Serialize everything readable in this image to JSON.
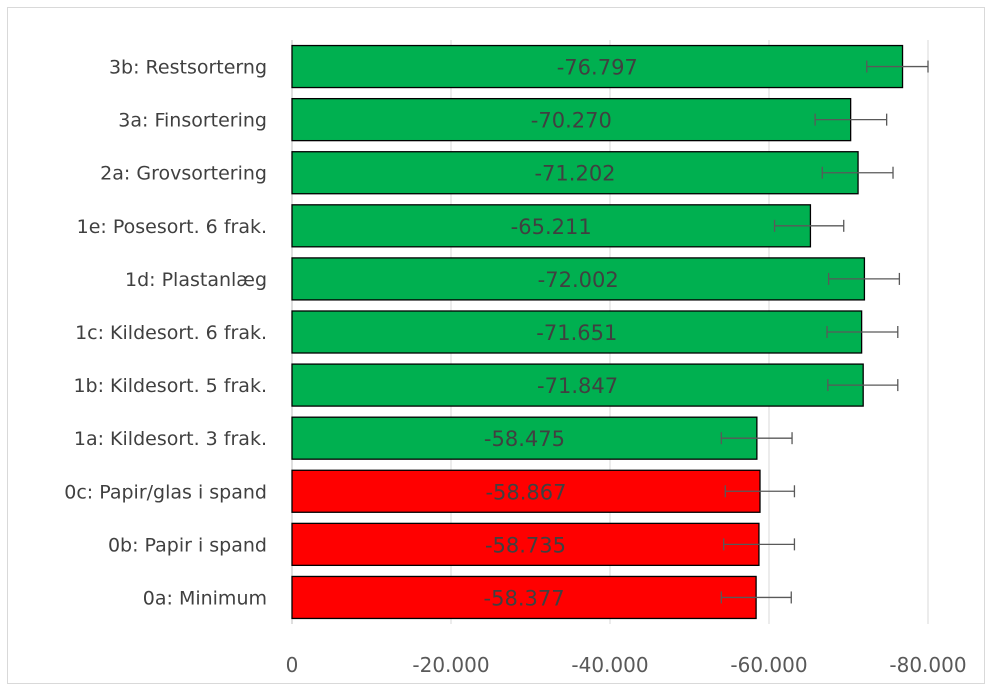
{
  "chart_data": {
    "type": "bar",
    "orientation": "horizontal",
    "categories": [
      "3b: Restsorterng",
      "3a: Finsortering",
      "2a: Grovsortering",
      "1e: Posesort. 6 frak.",
      "1d: Plastanlæg",
      "1c: Kildesort. 6 frak.",
      "1b: Kildesort. 5 frak.",
      "1a: Kildesort. 3 frak.",
      "0c: Papir/glas i spand",
      "0b: Papir i spand",
      "0a: Minimum"
    ],
    "values": [
      -76797,
      -70270,
      -71202,
      -65211,
      -72002,
      -71651,
      -71847,
      -58475,
      -58867,
      -58735,
      -58377
    ],
    "value_labels": [
      "-76.797",
      "-70.270",
      "-71.202",
      "-65.211",
      "-72.002",
      "-71.651",
      "-71.847",
      "-58.475",
      "-58.867",
      "-58.735",
      "-58.377"
    ],
    "error_low": [
      -72300,
      -65800,
      -66700,
      -60700,
      -67500,
      -67300,
      -67400,
      -54000,
      -54500,
      -54300,
      -54000
    ],
    "error_high": [
      -80000,
      -74800,
      -75600,
      -69400,
      -76400,
      -76200,
      -76200,
      -62900,
      -63200,
      -63200,
      -62800
    ],
    "bar_colors": [
      "#00b050",
      "#00b050",
      "#00b050",
      "#00b050",
      "#00b050",
      "#00b050",
      "#00b050",
      "#00b050",
      "#ff0000",
      "#ff0000",
      "#ff0000"
    ],
    "x_axis": {
      "reversed": true,
      "xlim": [
        0,
        -80000
      ],
      "ticks": [
        0,
        -20000,
        -40000,
        -60000,
        -80000
      ],
      "tick_labels": [
        "0",
        "-20.000",
        "-40.000",
        "-60.000",
        "-80.000"
      ]
    },
    "gridlines": true,
    "legend": "none"
  }
}
